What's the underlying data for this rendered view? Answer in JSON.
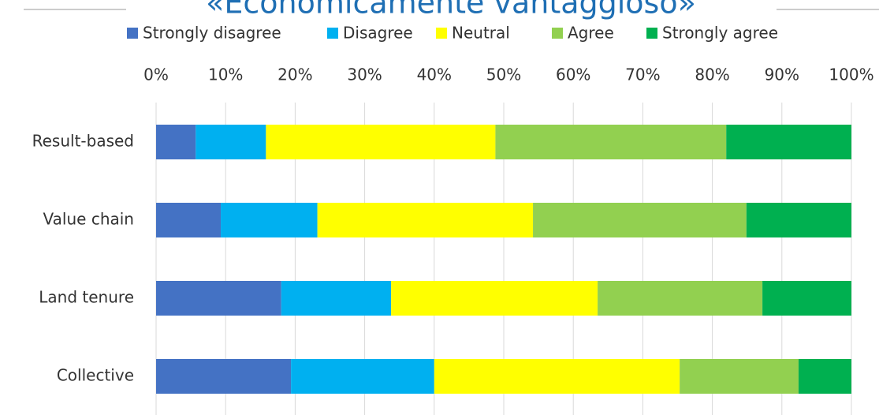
{
  "chart_data": {
    "type": "stacked-bar-horizontal",
    "title": "«Economicamente vantaggioso»",
    "categories": [
      "Result-based",
      "Value chain",
      "Land tenure",
      "Collective"
    ],
    "series": [
      {
        "name": "Strongly disagree",
        "color": "#4472c4",
        "values": [
          5.7,
          9.3,
          18.0,
          19.4
        ]
      },
      {
        "name": "Disagree",
        "color": "#00b0f0",
        "values": [
          10.1,
          13.9,
          15.8,
          20.6
        ]
      },
      {
        "name": "Neutral",
        "color": "#ffff00",
        "values": [
          33.0,
          31.0,
          29.7,
          35.3
        ]
      },
      {
        "name": "Agree",
        "color": "#92d050",
        "values": [
          33.2,
          30.7,
          23.7,
          17.1
        ]
      },
      {
        "name": "Strongly agree",
        "color": "#00b050",
        "values": [
          18.0,
          15.1,
          12.8,
          7.6
        ]
      }
    ],
    "xlim": [
      0,
      100
    ],
    "xticks": [
      {
        "value": 0,
        "label": "0%"
      },
      {
        "value": 10,
        "label": "10%"
      },
      {
        "value": 20,
        "label": "20%"
      },
      {
        "value": 30,
        "label": "30%"
      },
      {
        "value": 40,
        "label": "40%"
      },
      {
        "value": 50,
        "label": "50%"
      },
      {
        "value": 60,
        "label": "60%"
      },
      {
        "value": 70,
        "label": "70%"
      },
      {
        "value": 80,
        "label": "80%"
      },
      {
        "value": 90,
        "label": "90%"
      },
      {
        "value": 100,
        "label": "100%"
      }
    ],
    "grid": true,
    "legend": "top"
  }
}
